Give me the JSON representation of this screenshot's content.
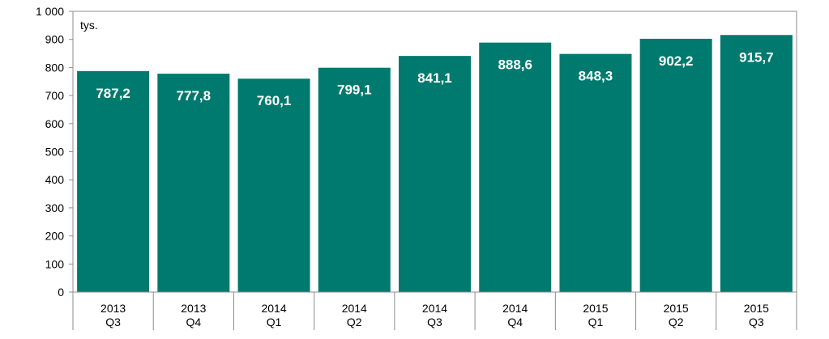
{
  "chart_data": {
    "type": "bar",
    "categories": [
      [
        "2013",
        "Q3"
      ],
      [
        "2013",
        "Q4"
      ],
      [
        "2014",
        "Q1"
      ],
      [
        "2014",
        "Q2"
      ],
      [
        "2014",
        "Q3"
      ],
      [
        "2014",
        "Q4"
      ],
      [
        "2015",
        "Q1"
      ],
      [
        "2015",
        "Q2"
      ],
      [
        "2015",
        "Q3"
      ]
    ],
    "values": [
      787.2,
      777.8,
      760.1,
      799.1,
      841.1,
      888.6,
      848.3,
      902.2,
      915.7
    ],
    "data_labels": [
      "787,2",
      "777,8",
      "760,1",
      "799,1",
      "841,1",
      "888,6",
      "848,3",
      "902,2",
      "915,7"
    ],
    "unit_label": "tys.",
    "title": "",
    "xlabel": "",
    "ylabel": "",
    "ylim": [
      0,
      1000
    ],
    "yticks": [
      0,
      100,
      200,
      300,
      400,
      500,
      600,
      700,
      800,
      900,
      1000
    ],
    "ytick_labels": [
      "0",
      "100",
      "200",
      "300",
      "400",
      "500",
      "600",
      "700",
      "800",
      "900",
      "1 000"
    ],
    "grid": false,
    "legend": "none",
    "bar_color": "#007A6E",
    "label_color": "#ffffff"
  }
}
